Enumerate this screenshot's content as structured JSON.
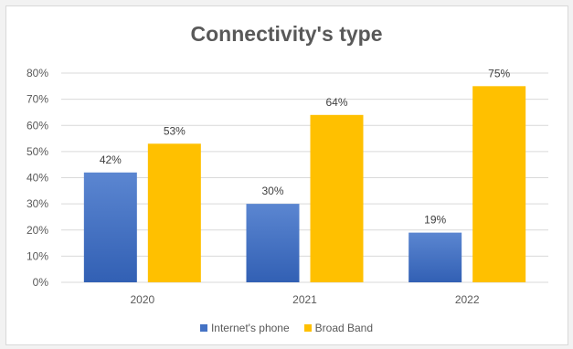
{
  "chart_data": {
    "type": "bar",
    "title": "Connectivity's type",
    "categories": [
      "2020",
      "2021",
      "2022"
    ],
    "series": [
      {
        "name": "Internet's phone",
        "values": [
          42,
          30,
          19
        ],
        "color": "#4472c4",
        "labels": [
          "42%",
          "30%",
          "19%"
        ]
      },
      {
        "name": "Broad Band",
        "values": [
          53,
          64,
          75
        ],
        "color": "#ffc000",
        "labels": [
          "53%",
          "64%",
          "75%"
        ]
      }
    ],
    "yticks": [
      "0%",
      "10%",
      "20%",
      "30%",
      "40%",
      "50%",
      "60%",
      "70%",
      "80%"
    ],
    "ylim": [
      0,
      80
    ],
    "xlabel": "",
    "ylabel": "",
    "grid": true,
    "legend": "bottom"
  }
}
